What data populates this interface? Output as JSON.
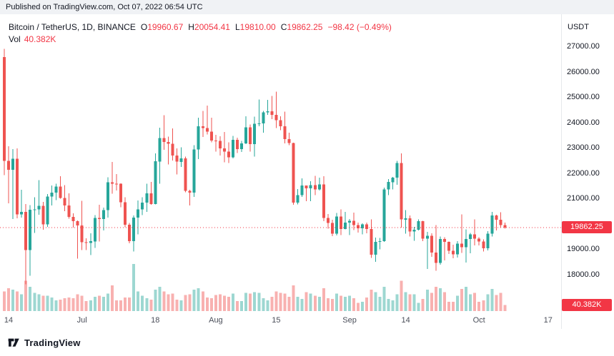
{
  "banner": {
    "text": "Published on TradingView.com, Oct 07, 2022 06:54 UTC"
  },
  "legend": {
    "symbol": "Bitcoin / TetherUS, 1D, BINANCE",
    "ohlc": [
      {
        "k": "O",
        "v": "19960.67"
      },
      {
        "k": "H",
        "v": "20054.41"
      },
      {
        "k": "L",
        "v": "19810.00"
      },
      {
        "k": "C",
        "v": "19862.25"
      }
    ],
    "change": "−98.42 (−0.49%)",
    "vol_label": "Vol",
    "vol_value": "40.382K"
  },
  "price_axis": {
    "currency": "USDT",
    "ticks": [
      {
        "label": "27000.00",
        "price": 27000
      },
      {
        "label": "26000.00",
        "price": 26000
      },
      {
        "label": "25000.00",
        "price": 25000
      },
      {
        "label": "24000.00",
        "price": 24000
      },
      {
        "label": "23000.00",
        "price": 23000
      },
      {
        "label": "22000.00",
        "price": 22000
      },
      {
        "label": "21000.00",
        "price": 21000
      },
      {
        "label": "19000.00",
        "price": 19000
      },
      {
        "label": "18000.00",
        "price": 18000
      }
    ],
    "last_price_label": "19862.25",
    "last_volume_label": "40.382K"
  },
  "time_axis": {
    "ticks": [
      {
        "label": "14",
        "index": 1
      },
      {
        "label": "Jul",
        "index": 18
      },
      {
        "label": "18",
        "index": 35
      },
      {
        "label": "Aug",
        "index": 49
      },
      {
        "label": "15",
        "index": 63
      },
      {
        "label": "Sep",
        "index": 80
      },
      {
        "label": "14",
        "index": 93
      },
      {
        "label": "Oct",
        "index": 110
      },
      {
        "label": "17",
        "index": 126
      }
    ]
  },
  "footer": {
    "brand": "TradingView"
  },
  "colors": {
    "up": "#26a69a",
    "down": "#ef5350",
    "up_volume": "rgba(38,166,154,0.45)",
    "down_volume": "rgba(239,83,80,0.45)",
    "accent": "#f23645",
    "text": "#131722",
    "muted_text": "#4a4e59"
  },
  "chart_data": {
    "type": "candlestick",
    "title": "Bitcoin / TetherUS, 1D, BINANCE",
    "price_currency": "USDT",
    "interval": "1D",
    "y_ticks": [
      27000,
      26000,
      25000,
      24000,
      23000,
      22000,
      21000,
      19000,
      18000
    ],
    "ylim": [
      16600,
      28000
    ],
    "grid": false,
    "last": {
      "open": 19960.67,
      "high": 20054.41,
      "low": 19810.0,
      "close": 19862.25,
      "change": -98.42,
      "change_pct": -0.49,
      "volume_k": 40.382
    },
    "columns": [
      "date",
      "open",
      "high",
      "low",
      "close",
      "volume_k"
    ],
    "candles": [
      [
        "2022-06-13",
        26574,
        26895,
        21926,
        22487,
        130
      ],
      [
        "2022-06-14",
        22487,
        23057,
        20816,
        22135,
        150
      ],
      [
        "2022-06-15",
        22135,
        22955,
        20190,
        22572,
        140
      ],
      [
        "2022-06-16",
        22572,
        22972,
        20225,
        20381,
        130
      ],
      [
        "2022-06-17",
        20381,
        21343,
        20243,
        20471,
        110
      ],
      [
        "2022-06-18",
        20471,
        20780,
        17622,
        18970,
        200
      ],
      [
        "2022-06-19",
        18970,
        20736,
        17958,
        20553,
        160
      ],
      [
        "2022-06-20",
        20553,
        21056,
        19641,
        20574,
        120
      ],
      [
        "2022-06-21",
        20574,
        21723,
        20363,
        20710,
        110
      ],
      [
        "2022-06-22",
        20710,
        20866,
        19770,
        19987,
        100
      ],
      [
        "2022-06-23",
        19987,
        21185,
        19890,
        21085,
        100
      ],
      [
        "2022-06-24",
        21085,
        21519,
        20733,
        21231,
        90
      ],
      [
        "2022-06-25",
        21231,
        21585,
        20941,
        21478,
        70
      ],
      [
        "2022-06-26",
        21478,
        21880,
        20996,
        21027,
        75
      ],
      [
        "2022-06-27",
        21027,
        21532,
        20508,
        20735,
        85
      ],
      [
        "2022-06-28",
        20735,
        21205,
        20206,
        20280,
        90
      ],
      [
        "2022-06-29",
        20280,
        20414,
        19858,
        20104,
        85
      ],
      [
        "2022-06-30",
        20104,
        20141,
        18626,
        19942,
        110
      ],
      [
        "2022-07-01",
        19942,
        20908,
        18975,
        19279,
        100
      ],
      [
        "2022-07-02",
        19279,
        19439,
        18977,
        19252,
        65
      ],
      [
        "2022-07-03",
        19252,
        19634,
        18768,
        19315,
        70
      ],
      [
        "2022-07-04",
        19315,
        20354,
        19055,
        20231,
        95
      ],
      [
        "2022-07-05",
        20231,
        20750,
        19305,
        20190,
        100
      ],
      [
        "2022-07-06",
        20190,
        20650,
        19740,
        20548,
        95
      ],
      [
        "2022-07-07",
        20548,
        21841,
        20251,
        21637,
        115
      ],
      [
        "2022-07-08",
        21637,
        22450,
        21190,
        21592,
        170
      ],
      [
        "2022-07-09",
        21592,
        21965,
        21322,
        21591,
        70
      ],
      [
        "2022-07-10",
        21591,
        21600,
        20656,
        20860,
        70
      ],
      [
        "2022-07-11",
        20860,
        21057,
        19875,
        19963,
        90
      ],
      [
        "2022-07-12",
        19963,
        20043,
        19240,
        19325,
        90
      ],
      [
        "2022-07-13",
        19325,
        20331,
        18910,
        20243,
        310
      ],
      [
        "2022-07-14",
        20243,
        20920,
        19590,
        20573,
        130
      ],
      [
        "2022-07-15",
        20573,
        21050,
        20350,
        20836,
        100
      ],
      [
        "2022-07-16",
        20836,
        21580,
        20470,
        21208,
        85
      ],
      [
        "2022-07-17",
        21208,
        21660,
        20750,
        20790,
        75
      ],
      [
        "2022-07-18",
        20790,
        22777,
        20765,
        22465,
        140
      ],
      [
        "2022-07-19",
        22465,
        23800,
        21580,
        23389,
        160
      ],
      [
        "2022-07-20",
        23389,
        24280,
        22920,
        23231,
        130
      ],
      [
        "2022-07-21",
        23231,
        23440,
        22350,
        23163,
        110
      ],
      [
        "2022-07-22",
        23163,
        23760,
        22500,
        22690,
        115
      ],
      [
        "2022-07-23",
        22690,
        22980,
        21950,
        22450,
        75
      ],
      [
        "2022-07-24",
        22450,
        23020,
        22250,
        22579,
        70
      ],
      [
        "2022-07-25",
        22579,
        22650,
        21250,
        21311,
        105
      ],
      [
        "2022-07-26",
        21311,
        21340,
        20730,
        21240,
        110
      ],
      [
        "2022-07-27",
        21240,
        23110,
        21060,
        22930,
        140
      ],
      [
        "2022-07-28",
        22930,
        24190,
        22550,
        23843,
        150
      ],
      [
        "2022-07-29",
        23843,
        24450,
        23430,
        23773,
        130
      ],
      [
        "2022-07-30",
        23773,
        24668,
        23520,
        23644,
        90
      ],
      [
        "2022-07-31",
        23644,
        24190,
        23220,
        23293,
        85
      ],
      [
        "2022-08-01",
        23293,
        23510,
        22850,
        23269,
        105
      ],
      [
        "2022-08-02",
        23269,
        23460,
        22690,
        22978,
        110
      ],
      [
        "2022-08-03",
        22978,
        23630,
        22430,
        22846,
        100
      ],
      [
        "2022-08-04",
        22846,
        23220,
        22400,
        22630,
        95
      ],
      [
        "2022-08-05",
        22630,
        23470,
        22580,
        23312,
        115
      ],
      [
        "2022-08-06",
        23312,
        23400,
        22800,
        22954,
        65
      ],
      [
        "2022-08-07",
        22954,
        23270,
        22840,
        23175,
        65
      ],
      [
        "2022-08-08",
        23175,
        24245,
        23150,
        23809,
        120
      ],
      [
        "2022-08-09",
        23809,
        23920,
        22850,
        23151,
        115
      ],
      [
        "2022-08-10",
        23151,
        24226,
        22660,
        23948,
        125
      ],
      [
        "2022-08-11",
        23948,
        24900,
        23850,
        23957,
        120
      ],
      [
        "2022-08-12",
        23957,
        24450,
        23600,
        24402,
        85
      ],
      [
        "2022-08-13",
        24402,
        24890,
        24300,
        24441,
        70
      ],
      [
        "2022-08-14",
        24441,
        25047,
        24130,
        24305,
        95
      ],
      [
        "2022-08-15",
        24305,
        25211,
        23780,
        24094,
        130
      ],
      [
        "2022-08-16",
        24094,
        24247,
        23690,
        23854,
        120
      ],
      [
        "2022-08-17",
        23854,
        24430,
        23180,
        23342,
        115
      ],
      [
        "2022-08-18",
        23342,
        23600,
        23100,
        23191,
        95
      ],
      [
        "2022-08-19",
        23191,
        23210,
        20760,
        20834,
        170
      ],
      [
        "2022-08-20",
        20834,
        21380,
        20770,
        21139,
        95
      ],
      [
        "2022-08-21",
        21139,
        21800,
        21070,
        21516,
        80
      ],
      [
        "2022-08-22",
        21516,
        21520,
        20890,
        21398,
        125
      ],
      [
        "2022-08-23",
        21398,
        21680,
        20900,
        21528,
        115
      ],
      [
        "2022-08-24",
        21528,
        21900,
        21140,
        21368,
        100
      ],
      [
        "2022-08-25",
        21368,
        21820,
        21320,
        21559,
        95
      ],
      [
        "2022-08-26",
        21559,
        21880,
        20110,
        20241,
        150
      ],
      [
        "2022-08-27",
        20241,
        20390,
        19810,
        20037,
        85
      ],
      [
        "2022-08-28",
        20037,
        20170,
        19520,
        19616,
        80
      ],
      [
        "2022-08-29",
        19616,
        20430,
        19550,
        20298,
        115
      ],
      [
        "2022-08-30",
        20298,
        20576,
        19567,
        19796,
        100
      ],
      [
        "2022-08-31",
        19796,
        20480,
        19790,
        20050,
        95
      ],
      [
        "2022-09-01",
        20050,
        20200,
        19561,
        20126,
        100
      ],
      [
        "2022-09-02",
        20126,
        20440,
        19755,
        19952,
        85
      ],
      [
        "2022-09-03",
        19952,
        20060,
        19655,
        19832,
        55
      ],
      [
        "2022-09-04",
        19832,
        20025,
        19588,
        19986,
        60
      ],
      [
        "2022-09-05",
        19986,
        20060,
        19635,
        19794,
        90
      ],
      [
        "2022-09-06",
        19794,
        20180,
        18660,
        18790,
        140
      ],
      [
        "2022-09-07",
        18790,
        19460,
        18510,
        19290,
        125
      ],
      [
        "2022-09-08",
        19290,
        19450,
        19000,
        19320,
        95
      ],
      [
        "2022-09-09",
        19320,
        21430,
        19290,
        21360,
        160
      ],
      [
        "2022-09-10",
        21360,
        21770,
        21130,
        21650,
        80
      ],
      [
        "2022-09-11",
        21650,
        21860,
        21360,
        21826,
        70
      ],
      [
        "2022-09-12",
        21826,
        22490,
        21550,
        22395,
        110
      ],
      [
        "2022-09-13",
        22395,
        22780,
        19860,
        20173,
        200
      ],
      [
        "2022-09-14",
        20173,
        20540,
        19620,
        20226,
        125
      ],
      [
        "2022-09-15",
        20226,
        20330,
        19500,
        19701,
        110
      ],
      [
        "2022-09-16",
        19701,
        19890,
        19330,
        19772,
        110
      ],
      [
        "2022-09-17",
        19772,
        20180,
        19740,
        20113,
        55
      ],
      [
        "2022-09-18",
        20113,
        20120,
        19320,
        19416,
        80
      ],
      [
        "2022-09-19",
        19416,
        19690,
        18230,
        19537,
        140
      ],
      [
        "2022-09-20",
        19537,
        19630,
        18710,
        18875,
        120
      ],
      [
        "2022-09-21",
        18875,
        19950,
        18150,
        18461,
        160
      ],
      [
        "2022-09-22",
        18461,
        19500,
        18390,
        19401,
        150
      ],
      [
        "2022-09-23",
        19401,
        19480,
        18560,
        19297,
        125
      ],
      [
        "2022-09-24",
        19297,
        19310,
        18810,
        18937,
        60
      ],
      [
        "2022-09-25",
        18937,
        19180,
        18650,
        18808,
        60
      ],
      [
        "2022-09-26",
        18808,
        19320,
        18680,
        19227,
        100
      ],
      [
        "2022-09-27",
        19227,
        20380,
        18860,
        19079,
        145
      ],
      [
        "2022-09-28",
        19079,
        19790,
        18480,
        19412,
        160
      ],
      [
        "2022-09-29",
        19412,
        19640,
        18840,
        19592,
        110
      ],
      [
        "2022-09-30",
        19592,
        20180,
        19150,
        19423,
        120
      ],
      [
        "2022-10-01",
        19423,
        19480,
        19160,
        19312,
        60
      ],
      [
        "2022-10-02",
        19312,
        19390,
        18920,
        19044,
        70
      ],
      [
        "2022-10-03",
        19044,
        19720,
        18960,
        19623,
        110
      ],
      [
        "2022-10-04",
        19623,
        20475,
        19500,
        20336,
        145
      ],
      [
        "2022-10-05",
        20336,
        20365,
        19750,
        20160,
        105
      ],
      [
        "2022-10-06",
        20160,
        20456,
        19860,
        19955,
        120
      ],
      [
        "2022-10-07",
        19960.67,
        20054.41,
        19810.0,
        19862.25,
        40.382
      ]
    ]
  }
}
